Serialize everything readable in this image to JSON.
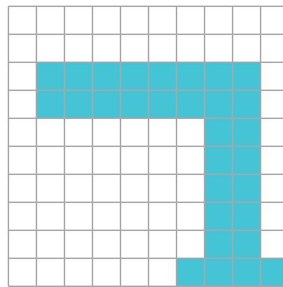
{
  "board": {
    "columns": 10,
    "rows": 10,
    "cell_colors": {
      "empty": "#ffffff",
      "filled": "#45c4d6",
      "grid_line": "#a8a8a8"
    },
    "filled_cells": [
      [
        2,
        1
      ],
      [
        2,
        2
      ],
      [
        2,
        3
      ],
      [
        2,
        4
      ],
      [
        2,
        5
      ],
      [
        2,
        6
      ],
      [
        2,
        7
      ],
      [
        2,
        8
      ],
      [
        3,
        1
      ],
      [
        3,
        2
      ],
      [
        3,
        3
      ],
      [
        3,
        4
      ],
      [
        3,
        5
      ],
      [
        3,
        6
      ],
      [
        3,
        7
      ],
      [
        3,
        8
      ],
      [
        4,
        7
      ],
      [
        4,
        8
      ],
      [
        5,
        7
      ],
      [
        5,
        8
      ],
      [
        6,
        7
      ],
      [
        6,
        8
      ],
      [
        7,
        7
      ],
      [
        7,
        8
      ],
      [
        8,
        7
      ],
      [
        8,
        8
      ],
      [
        9,
        6
      ],
      [
        9,
        7
      ],
      [
        9,
        8
      ],
      [
        9,
        9
      ]
    ]
  }
}
